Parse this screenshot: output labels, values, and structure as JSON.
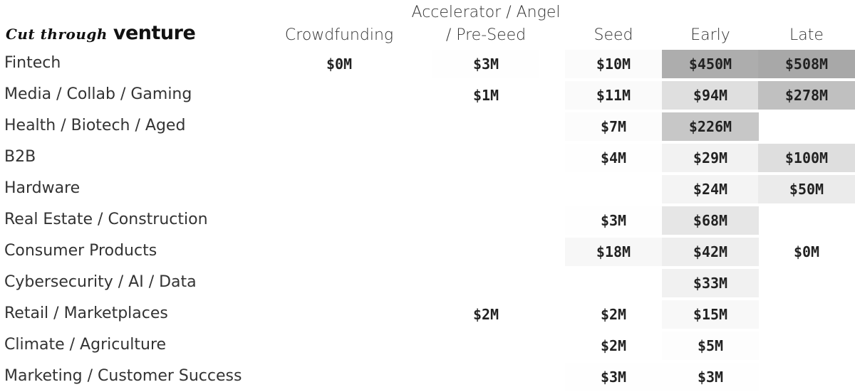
{
  "brand": {
    "script": "Cut through",
    "word": "venture"
  },
  "chart_data": {
    "type": "heatmap",
    "columns": [
      "Crowdfunding",
      "Accelerator / Angel / Pre-Seed",
      "Seed",
      "Early",
      "Late"
    ],
    "column_header_lines": [
      [
        "Crowdfunding"
      ],
      [
        "Accelerator / Angel",
        "/ Pre-Seed"
      ],
      [
        "Seed"
      ],
      [
        "Early"
      ],
      [
        "Late"
      ]
    ],
    "unit": "$M",
    "rows": [
      {
        "label": "Fintech",
        "values": [
          0,
          3,
          10,
          450,
          508
        ],
        "display": [
          "$0M",
          "$3M",
          "$10M",
          "$450M",
          "$508M"
        ]
      },
      {
        "label": "Media / Collab / Gaming",
        "values": [
          null,
          1,
          11,
          94,
          278
        ],
        "display": [
          "",
          "$1M",
          "$11M",
          "$94M",
          "$278M"
        ]
      },
      {
        "label": "Health / Biotech / Aged",
        "values": [
          null,
          null,
          7,
          226,
          null
        ],
        "display": [
          "",
          "",
          "$7M",
          "$226M",
          ""
        ]
      },
      {
        "label": "B2B",
        "values": [
          null,
          null,
          4,
          29,
          100
        ],
        "display": [
          "",
          "",
          "$4M",
          "$29M",
          "$100M"
        ]
      },
      {
        "label": "Hardware",
        "values": [
          null,
          null,
          null,
          24,
          50
        ],
        "display": [
          "",
          "",
          "",
          "$24M",
          "$50M"
        ]
      },
      {
        "label": "Real Estate / Construction",
        "values": [
          null,
          null,
          3,
          68,
          null
        ],
        "display": [
          "",
          "",
          "$3M",
          "$68M",
          ""
        ]
      },
      {
        "label": "Consumer Products",
        "values": [
          null,
          null,
          18,
          42,
          0
        ],
        "display": [
          "",
          "",
          "$18M",
          "$42M",
          "$0M"
        ]
      },
      {
        "label": "Cybersecurity / AI / Data",
        "values": [
          null,
          null,
          null,
          33,
          null
        ],
        "display": [
          "",
          "",
          "",
          "$33M",
          ""
        ]
      },
      {
        "label": "Retail  / Marketplaces",
        "values": [
          null,
          2,
          2,
          15,
          null
        ],
        "display": [
          "",
          "$2M",
          "$2M",
          "$15M",
          ""
        ]
      },
      {
        "label": "Climate / Agriculture",
        "values": [
          null,
          null,
          2,
          5,
          null
        ],
        "display": [
          "",
          "",
          "$2M",
          "$5M",
          ""
        ]
      },
      {
        "label": "Marketing / Customer Success",
        "values": [
          null,
          null,
          3,
          3,
          null
        ],
        "display": [
          "",
          "",
          "$3M",
          "$3M",
          ""
        ]
      }
    ],
    "color_scale": {
      "low": "#ffffff",
      "high": "#a8a8a8",
      "max": 508
    },
    "grid": false,
    "legend": "none"
  }
}
